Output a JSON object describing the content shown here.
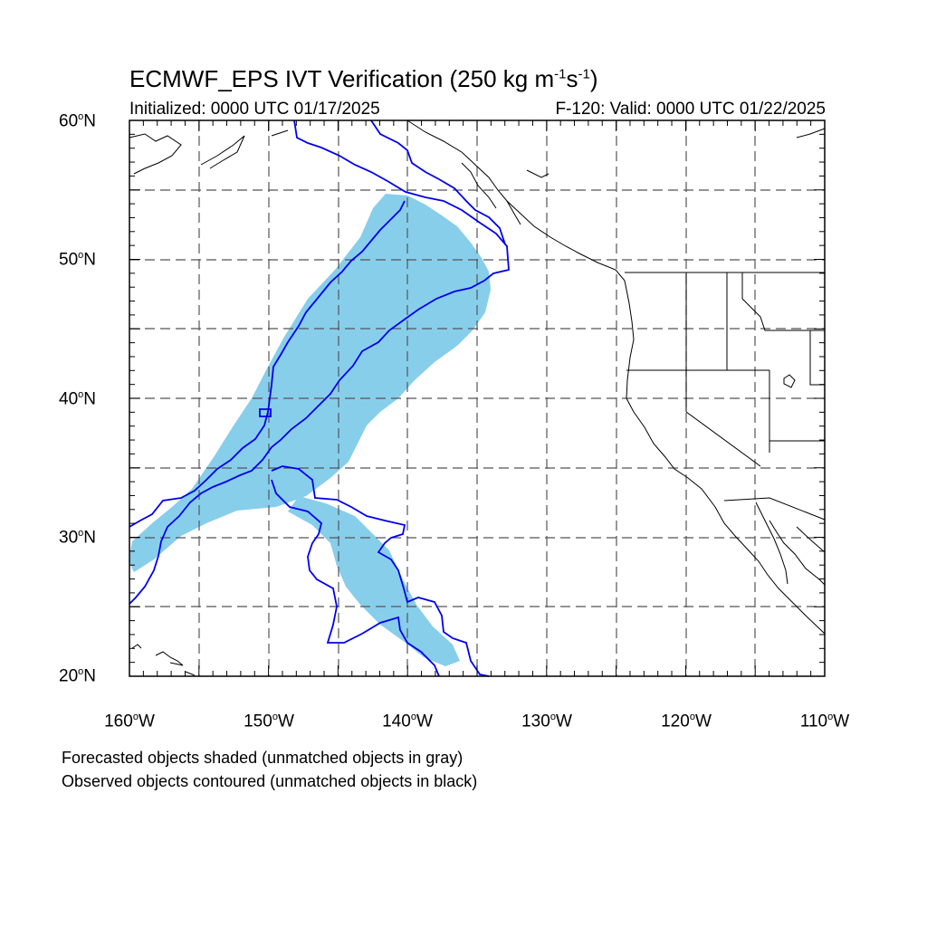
{
  "title": {
    "main": "ECMWF_EPS IVT Verification (250 kg m",
    "exp1": "-1",
    "mid": "s",
    "exp2": "-1",
    "end": ")"
  },
  "subtitle_left": "Initialized: 0000 UTC 01/17/2025",
  "subtitle_right": "F-120: Valid: 0000 UTC 01/22/2025",
  "axes": {
    "lat_labels": [
      {
        "deg": "60",
        "hemi": "N"
      },
      {
        "deg": "50",
        "hemi": "N"
      },
      {
        "deg": "40",
        "hemi": "N"
      },
      {
        "deg": "30",
        "hemi": "N"
      },
      {
        "deg": "20",
        "hemi": "N"
      }
    ],
    "lon_labels": [
      {
        "deg": "160",
        "hemi": "W"
      },
      {
        "deg": "150",
        "hemi": "W"
      },
      {
        "deg": "140",
        "hemi": "W"
      },
      {
        "deg": "130",
        "hemi": "W"
      },
      {
        "deg": "120",
        "hemi": "W"
      },
      {
        "deg": "110",
        "hemi": "W"
      }
    ],
    "lat_range": [
      20,
      60
    ],
    "lon_range": [
      -160,
      -110
    ],
    "gridlines": "dashed, every 5 degrees"
  },
  "legend_notes": [
    "Forecasted objects shaded (unmatched objects in gray)",
    "Observed objects contoured (unmatched objects in black)"
  ],
  "colors": {
    "forecast_fill": "#87ceeb",
    "observed_contour": "#0000ee",
    "coastline": "#000000",
    "grid": "#555555"
  }
}
